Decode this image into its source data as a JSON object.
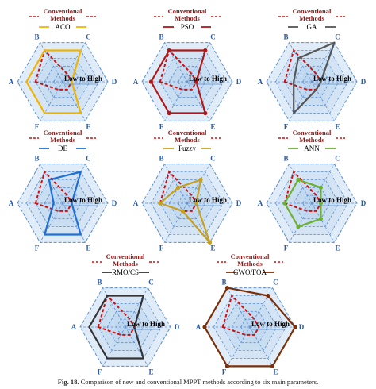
{
  "figure": {
    "caption_label": "Fig. 18.",
    "caption_text": "Comparison of new and conventional MPPT methods according to six main parameters."
  },
  "legend_text": {
    "conventional_line1": "Conventional",
    "conventional_line2": "Methods",
    "low_high": "Low to High"
  },
  "colors": {
    "conventional": "#cc1111",
    "grid": "#5b8fd0",
    "fill": "#9ec3ea",
    "label": "#2a5aa6"
  },
  "chart_data": [
    {
      "type": "radar",
      "method": "ACO",
      "color": "#f0b400",
      "markers": false,
      "axes": [
        "A",
        "B",
        "C",
        "D",
        "E",
        "F"
      ],
      "levels": 5,
      "values": [
        4,
        4,
        4,
        1,
        4,
        4
      ],
      "conventional_values": [
        3,
        4,
        1,
        1,
        1,
        1
      ]
    },
    {
      "type": "radar",
      "method": "PSO",
      "color": "#b01818",
      "markers": true,
      "axes": [
        "A",
        "B",
        "C",
        "D",
        "E",
        "F"
      ],
      "levels": 5,
      "values": [
        4,
        4,
        4,
        1,
        4,
        4
      ],
      "conventional_values": [
        3,
        4,
        1,
        1,
        1,
        1
      ]
    },
    {
      "type": "radar",
      "method": "GA",
      "color": "#555555",
      "markers": false,
      "axes": [
        "A",
        "B",
        "C",
        "D",
        "E",
        "F"
      ],
      "levels": 5,
      "values": [
        2,
        3,
        5,
        1,
        1,
        4
      ],
      "conventional_values": [
        3,
        4,
        1,
        1,
        1,
        1
      ]
    },
    {
      "type": "radar",
      "method": "DE",
      "color": "#1f6fd6",
      "markers": false,
      "axes": [
        "A",
        "B",
        "C",
        "D",
        "E",
        "F"
      ],
      "levels": 5,
      "values": [
        1,
        3,
        4,
        1,
        4,
        4
      ],
      "conventional_values": [
        3,
        4,
        1,
        1,
        1,
        1
      ]
    },
    {
      "type": "radar",
      "method": "Fuzzy",
      "color": "#c8a020",
      "markers": true,
      "axes": [
        "A",
        "B",
        "C",
        "D",
        "E",
        "F"
      ],
      "levels": 5,
      "values": [
        3,
        2,
        3,
        1,
        5,
        1
      ],
      "conventional_values": [
        3,
        4,
        1,
        1,
        1,
        1
      ]
    },
    {
      "type": "radar",
      "method": "ANN",
      "color": "#6bb033",
      "markers": true,
      "axes": [
        "A",
        "B",
        "C",
        "D",
        "E",
        "F"
      ],
      "levels": 5,
      "values": [
        3,
        3,
        2,
        1,
        2,
        3
      ],
      "conventional_values": [
        3,
        4,
        1,
        1,
        1,
        1
      ]
    },
    {
      "type": "radar",
      "method": "RMO/CS",
      "color": "#333333",
      "markers": false,
      "axes": [
        "A",
        "B",
        "C",
        "D",
        "E",
        "F"
      ],
      "levels": 5,
      "values": [
        4,
        4,
        4,
        1,
        4,
        4
      ],
      "conventional_values": [
        3,
        4,
        1,
        1,
        1,
        1
      ]
    },
    {
      "type": "radar",
      "method": "GWO/FOA",
      "color": "#7a3008",
      "markers": true,
      "axes": [
        "A",
        "B",
        "C",
        "D",
        "E",
        "F"
      ],
      "levels": 5,
      "values": [
        5,
        5,
        4,
        5,
        5,
        5
      ],
      "conventional_values": [
        3,
        4,
        1,
        1,
        1,
        1
      ]
    }
  ]
}
